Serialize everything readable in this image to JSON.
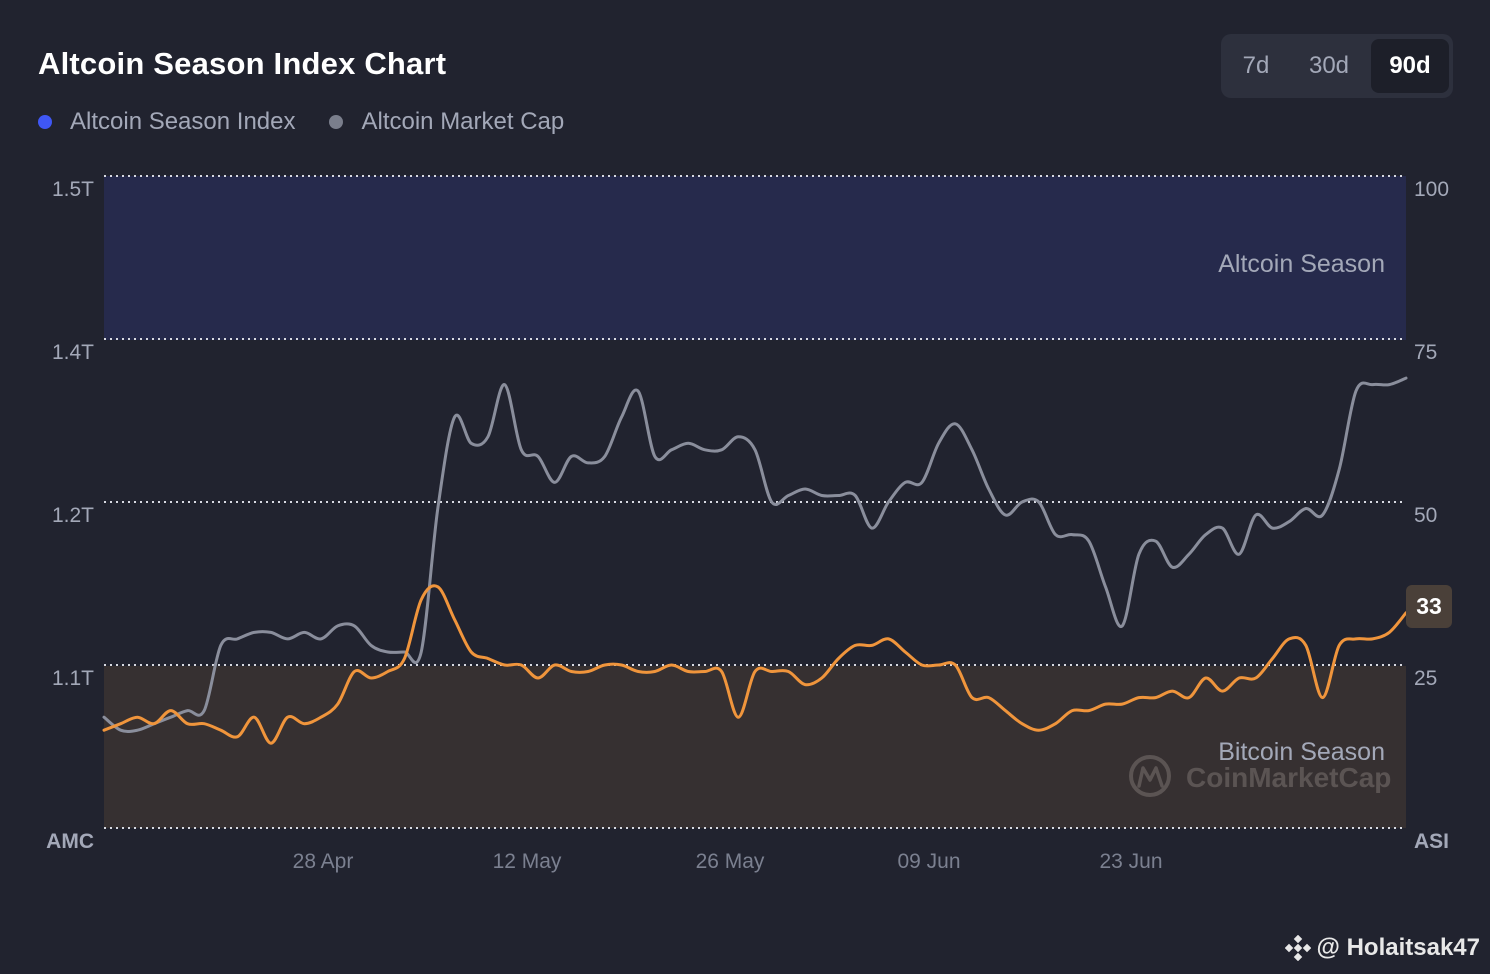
{
  "header": {
    "title": "Altcoin Season Index Chart",
    "ranges": [
      "7d",
      "30d",
      "90d"
    ],
    "active_range": "90d"
  },
  "legend": [
    {
      "label": "Altcoin Season Index",
      "color": "#3f57f5"
    },
    {
      "label": "Altcoin Market Cap",
      "color": "#7a7e8c"
    }
  ],
  "chart_data": {
    "type": "line",
    "left_axis": {
      "label": "AMC",
      "ticks": [
        "1.5T",
        "1.4T",
        "1.2T",
        "1.1T"
      ]
    },
    "right_axis": {
      "label": "ASI",
      "ticks": [
        100,
        75,
        50,
        25
      ],
      "ylim": [
        0,
        100
      ]
    },
    "x_ticks": [
      "28 Apr",
      "12 May",
      "26 May",
      "09 Jun",
      "23 Jun"
    ],
    "zones": [
      {
        "label": "Altcoin Season",
        "from": 75,
        "to": 100,
        "color": "#262a4c"
      },
      {
        "label": "Bitcoin Season",
        "from": 0,
        "to": 25,
        "color": "#363031"
      }
    ],
    "current_value": "33",
    "series": [
      {
        "name": "Altcoin Market Cap",
        "color": "#8a8e9c",
        "scale": "ASI",
        "values": [
          17,
          15,
          15,
          16,
          17,
          18,
          18,
          28,
          29,
          30,
          30,
          29,
          30,
          29,
          31,
          31,
          28,
          27,
          27,
          27,
          49,
          63,
          59,
          60,
          68,
          58,
          57,
          53,
          57,
          56,
          57,
          63,
          67,
          57,
          58,
          59,
          58,
          58,
          60,
          58,
          50,
          51,
          52,
          51,
          51,
          51,
          46,
          50,
          53,
          53,
          59,
          62,
          58,
          52,
          48,
          50,
          50,
          45,
          45,
          44,
          37,
          31,
          42,
          44,
          40,
          42,
          45,
          46,
          42,
          48,
          46,
          47,
          49,
          48,
          55,
          67,
          68,
          68,
          69
        ]
      },
      {
        "name": "Altcoin Season Index",
        "color": "#f0953c",
        "scale": "ASI",
        "values": [
          15,
          16,
          17,
          16,
          18,
          16,
          16,
          15,
          14,
          17,
          13,
          17,
          16,
          17,
          19,
          24,
          23,
          24,
          26,
          35,
          37,
          32,
          27,
          26,
          25,
          25,
          23,
          25,
          24,
          24,
          25,
          25,
          24,
          24,
          25,
          24,
          24,
          24,
          17,
          24,
          24,
          24,
          22,
          23,
          26,
          28,
          28,
          29,
          27,
          25,
          25,
          25,
          20,
          20,
          18,
          16,
          15,
          16,
          18,
          18,
          19,
          19,
          20,
          20,
          21,
          20,
          23,
          21,
          23,
          23,
          26,
          29,
          28,
          20,
          28,
          29,
          29,
          30,
          33
        ]
      }
    ]
  },
  "watermark": {
    "handle": "@ Holaitsak47",
    "brand": "CoinMarketCap"
  }
}
